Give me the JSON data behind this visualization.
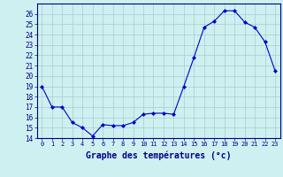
{
  "hours": [
    0,
    1,
    2,
    3,
    4,
    5,
    6,
    7,
    8,
    9,
    10,
    11,
    12,
    13,
    14,
    15,
    16,
    17,
    18,
    19,
    20,
    21,
    22,
    23
  ],
  "temps": [
    19,
    17,
    17,
    15.5,
    15,
    14.2,
    15.3,
    15.2,
    15.2,
    15.5,
    16.3,
    16.4,
    16.4,
    16.3,
    19,
    21.8,
    24.7,
    25.3,
    26.3,
    26.3,
    25.2,
    24.7,
    23.3,
    20.5
  ],
  "line_color": "#0000cc",
  "marker": "D",
  "marker_size": 2,
  "bg_color": "#cff0f0",
  "grid_color": "#aacccc",
  "xlabel": "Graphe des températures (°c)",
  "ylim": [
    14,
    27
  ],
  "yticks": [
    14,
    15,
    16,
    17,
    18,
    19,
    20,
    21,
    22,
    23,
    24,
    25,
    26
  ],
  "xlabel_color": "#000088",
  "tick_color": "#000088"
}
